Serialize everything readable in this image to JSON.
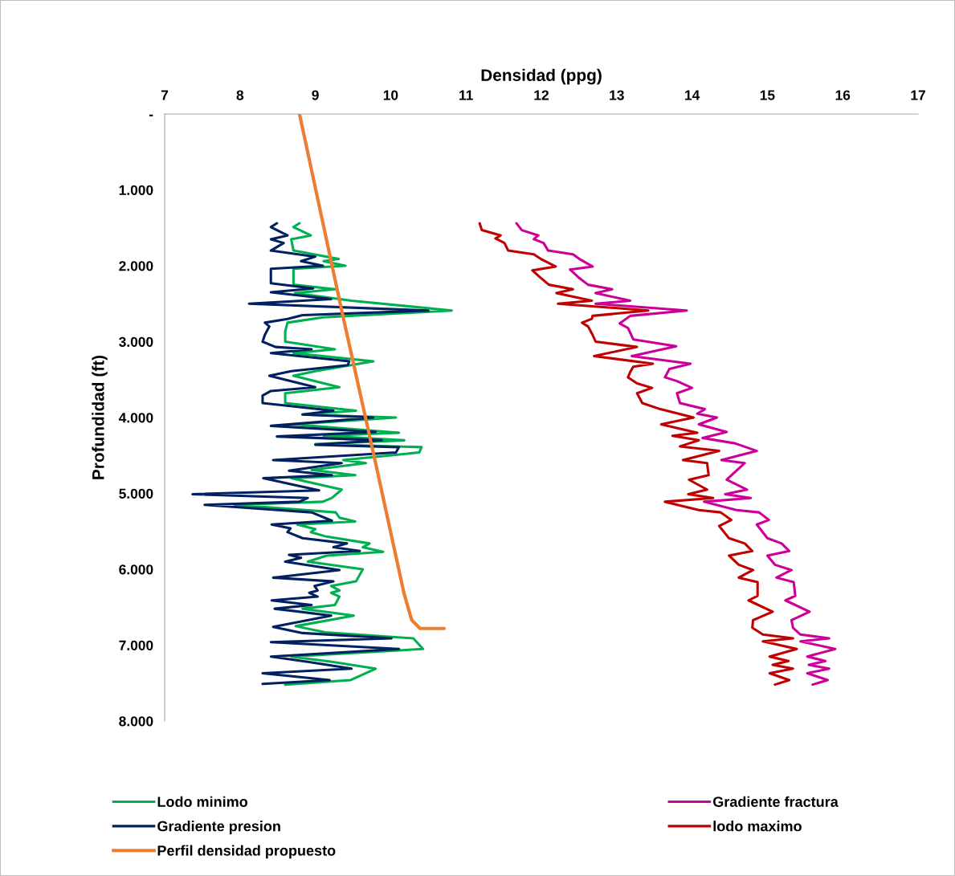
{
  "chart_data": {
    "type": "line",
    "xlabel": "Densidad (ppg)",
    "ylabel": "Profundidad (ft)",
    "xlim": [
      7,
      17
    ],
    "xticks": [
      7,
      8,
      9,
      10,
      11,
      12,
      13,
      14,
      15,
      16,
      17
    ],
    "ylim": [
      8000,
      0
    ],
    "yticks": [
      {
        "value": 0,
        "label": "-"
      },
      {
        "value": 1000,
        "label": "1.000"
      },
      {
        "value": 2000,
        "label": "2.000"
      },
      {
        "value": 3000,
        "label": "3.000"
      },
      {
        "value": 4000,
        "label": "4.000"
      },
      {
        "value": 5000,
        "label": "5.000"
      },
      {
        "value": 6000,
        "label": "6.000"
      },
      {
        "value": 7000,
        "label": "7.000"
      },
      {
        "value": 8000,
        "label": "8.000"
      }
    ],
    "grid": false,
    "legend": "bottom",
    "marker": "none",
    "line_style": "solid",
    "series": [
      {
        "name": "Lodo minimo",
        "color": "#00b050",
        "x": [
          8.79,
          8.71,
          8.94,
          8.68,
          8.71,
          9.31,
          9.11,
          9.4,
          8.71,
          8.71,
          9.26,
          8.73,
          9.48,
          10.81,
          9.1,
          8.63,
          8.6,
          8.6,
          9.26,
          8.71,
          9.77,
          9.0,
          8.71,
          9.32,
          8.6,
          8.6,
          9.54,
          8.83,
          10.07,
          8.71,
          10.11,
          9.11,
          10.18,
          9.0,
          10.41,
          10.38,
          9.37,
          9.67,
          8.95,
          9.53,
          8.68,
          9.35,
          9.22,
          9.1,
          7.93,
          9.27,
          9.32,
          9.53,
          8.76,
          9.0,
          8.94,
          9.15,
          9.72,
          9.63,
          9.9,
          9.15,
          8.9,
          9.63,
          9.54,
          9.21,
          9.32,
          9.21,
          9.32,
          9.26,
          8.83,
          9.51,
          8.74,
          9.13,
          10.3,
          10.43,
          8.68,
          9.22,
          9.8,
          9.47,
          8.6
        ],
        "values": [
          1440,
          1490,
          1600,
          1650,
          1800,
          1910,
          1940,
          2000,
          2040,
          2250,
          2310,
          2360,
          2460,
          2590,
          2680,
          2750,
          2870,
          3000,
          3100,
          3150,
          3260,
          3390,
          3450,
          3600,
          3680,
          3810,
          3910,
          3960,
          4000,
          4090,
          4200,
          4240,
          4300,
          4350,
          4390,
          4460,
          4560,
          4600,
          4690,
          4760,
          4800,
          4950,
          5060,
          5110,
          5150,
          5250,
          5320,
          5370,
          5410,
          5470,
          5510,
          5570,
          5660,
          5710,
          5770,
          5820,
          5900,
          6000,
          6160,
          6220,
          6280,
          6310,
          6360,
          6470,
          6520,
          6610,
          6750,
          6830,
          6910,
          7050,
          7150,
          7220,
          7310,
          7460,
          7520
        ]
      },
      {
        "name": "Gradiente presion",
        "color": "#002060",
        "x": [
          8.49,
          8.41,
          8.63,
          8.41,
          8.58,
          8.41,
          9.0,
          8.81,
          9.1,
          8.41,
          8.41,
          8.97,
          8.41,
          9.21,
          8.12,
          10.5,
          8.83,
          8.63,
          8.33,
          8.39,
          8.33,
          8.3,
          8.47,
          8.95,
          8.41,
          9.45,
          9.43,
          8.68,
          8.39,
          9.0,
          8.41,
          8.3,
          8.3,
          9.24,
          8.83,
          9.77,
          8.41,
          9.8,
          8.49,
          9.88,
          9.0,
          10.11,
          10.07,
          8.44,
          9.35,
          8.65,
          9.22,
          8.31,
          9.05,
          7.37,
          8.9,
          8.79,
          7.53,
          8.95,
          9.22,
          8.42,
          8.67,
          8.63,
          8.83,
          9.42,
          9.24,
          9.59,
          8.65,
          8.81,
          8.6,
          9.32,
          8.44,
          9.24,
          8.99,
          9.03,
          8.92,
          9.03,
          8.42,
          8.95,
          8.46,
          9.21,
          8.44,
          8.83,
          10.01,
          8.41,
          10.11,
          8.41,
          8.9,
          9.48,
          8.3,
          9.19,
          8.3
        ],
        "values": [
          1440,
          1490,
          1600,
          1650,
          1700,
          1800,
          1880,
          1940,
          2000,
          2040,
          2230,
          2300,
          2350,
          2440,
          2500,
          2590,
          2650,
          2700,
          2750,
          2800,
          2910,
          3000,
          3070,
          3100,
          3150,
          3260,
          3310,
          3390,
          3450,
          3600,
          3650,
          3710,
          3810,
          3910,
          3960,
          4000,
          4110,
          4190,
          4250,
          4300,
          4360,
          4390,
          4460,
          4560,
          4600,
          4700,
          4760,
          4800,
          4960,
          5010,
          5060,
          5110,
          5150,
          5250,
          5360,
          5410,
          5460,
          5510,
          5590,
          5660,
          5710,
          5760,
          5810,
          5850,
          5900,
          6010,
          6110,
          6160,
          6220,
          6280,
          6310,
          6360,
          6410,
          6470,
          6520,
          6610,
          6760,
          6840,
          6910,
          6960,
          7050,
          7150,
          7220,
          7310,
          7370,
          7460,
          7510
        ]
      },
      {
        "name": "Perfil densidad propuesto",
        "color": "#ed7d31",
        "x": [
          8.79,
          9.35,
          9.8,
          10.18,
          10.28,
          10.39,
          10.71
        ],
        "values": [
          0,
          2590,
          4600,
          6330,
          6670,
          6780,
          6780
        ]
      },
      {
        "name": "Gradiente fractura",
        "color": "#cc0099",
        "x": [
          11.67,
          11.74,
          11.96,
          11.9,
          12.03,
          12.09,
          12.42,
          12.52,
          12.68,
          12.38,
          12.49,
          12.62,
          12.94,
          12.72,
          13.18,
          12.72,
          13.93,
          13.18,
          13.04,
          13.15,
          13.22,
          13.79,
          13.2,
          13.98,
          13.7,
          13.64,
          13.8,
          14.0,
          13.8,
          13.84,
          14.17,
          14.07,
          14.33,
          14.09,
          14.46,
          14.14,
          14.57,
          14.86,
          14.39,
          14.7,
          14.46,
          14.73,
          14.44,
          14.78,
          14.16,
          14.59,
          14.89,
          15.02,
          14.86,
          15.0,
          15.19,
          15.29,
          15.0,
          15.1,
          15.32,
          15.12,
          15.35,
          15.37,
          15.24,
          15.56,
          15.32,
          15.34,
          15.44,
          15.82,
          15.44,
          15.9,
          15.53,
          15.77,
          15.55,
          15.82,
          15.53,
          15.8,
          15.6
        ],
        "values": [
          1440,
          1530,
          1600,
          1650,
          1700,
          1800,
          1850,
          1920,
          2010,
          2050,
          2150,
          2250,
          2310,
          2360,
          2460,
          2500,
          2590,
          2660,
          2760,
          2820,
          2970,
          3060,
          3190,
          3290,
          3360,
          3470,
          3520,
          3610,
          3680,
          3810,
          3890,
          3950,
          4000,
          4090,
          4190,
          4270,
          4340,
          4440,
          4560,
          4600,
          4820,
          4950,
          5010,
          5060,
          5110,
          5220,
          5250,
          5350,
          5410,
          5590,
          5660,
          5760,
          5820,
          5940,
          6010,
          6110,
          6170,
          6350,
          6410,
          6560,
          6670,
          6770,
          6860,
          6910,
          6950,
          7050,
          7150,
          7210,
          7260,
          7310,
          7370,
          7460,
          7520
        ]
      },
      {
        "name": "lodo maximo",
        "color": "#c00000",
        "x": [
          11.18,
          11.21,
          11.46,
          11.39,
          11.51,
          11.56,
          11.9,
          12.01,
          12.19,
          11.88,
          11.98,
          12.1,
          12.42,
          12.2,
          12.67,
          12.22,
          13.42,
          12.68,
          12.67,
          12.54,
          12.62,
          12.68,
          12.72,
          13.27,
          12.7,
          13.48,
          13.22,
          13.18,
          13.15,
          13.27,
          13.47,
          13.27,
          13.34,
          13.58,
          14.02,
          13.59,
          14.07,
          13.74,
          14.09,
          13.84,
          14.36,
          13.88,
          14.2,
          14.22,
          13.96,
          14.2,
          13.95,
          14.28,
          13.64,
          14.09,
          14.38,
          14.52,
          14.36,
          14.49,
          14.7,
          14.8,
          14.49,
          14.62,
          14.81,
          14.62,
          14.87,
          14.87,
          14.75,
          15.07,
          14.81,
          14.8,
          14.94,
          15.34,
          14.94,
          15.39,
          15.03,
          15.28,
          15.07,
          15.34,
          15.03,
          15.29,
          15.1
        ],
        "values": [
          1440,
          1530,
          1600,
          1640,
          1700,
          1800,
          1850,
          1920,
          2010,
          2060,
          2150,
          2250,
          2310,
          2360,
          2460,
          2500,
          2590,
          2660,
          2700,
          2750,
          2800,
          2910,
          3000,
          3070,
          3190,
          3290,
          3330,
          3400,
          3470,
          3550,
          3610,
          3680,
          3810,
          3890,
          4000,
          4090,
          4200,
          4240,
          4300,
          4380,
          4440,
          4560,
          4600,
          4760,
          4820,
          4950,
          5010,
          5060,
          5110,
          5220,
          5250,
          5350,
          5430,
          5590,
          5660,
          5760,
          5820,
          5940,
          6010,
          6110,
          6170,
          6350,
          6410,
          6560,
          6670,
          6770,
          6860,
          6910,
          6950,
          7050,
          7150,
          7210,
          7260,
          7310,
          7370,
          7460,
          7520
        ]
      }
    ]
  }
}
